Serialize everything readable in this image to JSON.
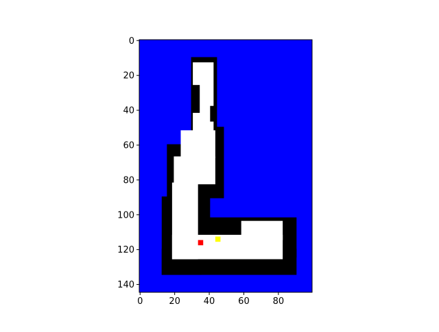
{
  "colors": {
    "background": "#0000ff",
    "wall": "#000000",
    "free": "#ffffff",
    "start_marker": "#ff0000",
    "goal_marker": "#ffff00"
  },
  "chart_data": {
    "type": "heatmap",
    "title": "",
    "xlabel": "",
    "ylabel": "",
    "xlim": [
      -0.5,
      99.5
    ],
    "ylim": [
      144.5,
      -0.5
    ],
    "y_axis_inverted": true,
    "grid": false,
    "x_ticks": [
      0,
      20,
      40,
      60,
      80
    ],
    "y_ticks": [
      0,
      20,
      40,
      60,
      80,
      100,
      120,
      140
    ],
    "legend": "none",
    "cell_values": {
      "background": 0,
      "wall": 1,
      "free": 2,
      "start": 3,
      "goal": 4
    },
    "regions": [
      {
        "value": 1,
        "x": [
          30,
          44
        ],
        "y": [
          10,
          50
        ]
      },
      {
        "value": 1,
        "x": [
          30,
          48
        ],
        "y": [
          50,
          64
        ]
      },
      {
        "value": 1,
        "x": [
          16,
          48
        ],
        "y": [
          60,
          90
        ]
      },
      {
        "value": 1,
        "x": [
          13,
          35
        ],
        "y": [
          90,
          134
        ]
      },
      {
        "value": 1,
        "x": [
          13,
          90
        ],
        "y": [
          120,
          134
        ]
      },
      {
        "value": 1,
        "x": [
          30,
          40
        ],
        "y": [
          78,
          114
        ]
      },
      {
        "value": 1,
        "x": [
          30,
          90
        ],
        "y": [
          102,
          124
        ]
      },
      {
        "value": 2,
        "x": [
          31,
          42
        ],
        "y": [
          13,
          52
        ]
      },
      {
        "value": 2,
        "x": [
          24,
          43
        ],
        "y": [
          52,
          67
        ]
      },
      {
        "value": 2,
        "x": [
          20,
          43
        ],
        "y": [
          67,
          82
        ]
      },
      {
        "value": 2,
        "x": [
          19,
          33
        ],
        "y": [
          82,
          125
        ]
      },
      {
        "value": 2,
        "x": [
          19,
          82
        ],
        "y": [
          112,
          125
        ]
      },
      {
        "value": 2,
        "x": [
          59,
          82
        ],
        "y": [
          104,
          114
        ]
      },
      {
        "value": 1,
        "x": [
          30,
          34
        ],
        "y": [
          26,
          41
        ]
      },
      {
        "value": 1,
        "x": [
          41,
          43
        ],
        "y": [
          38,
          46
        ]
      }
    ],
    "markers": [
      {
        "name": "start",
        "value": 3,
        "x": 35,
        "y": 116
      },
      {
        "name": "goal",
        "value": 4,
        "x": 45,
        "y": 114
      }
    ]
  }
}
